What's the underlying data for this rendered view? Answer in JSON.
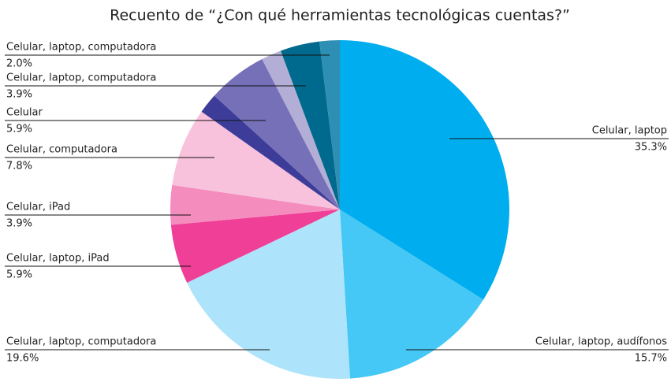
{
  "chart_data": {
    "type": "pie",
    "title": "Recuento de “¿Con qué herramientas tecnológicas cuentas?”",
    "categories": [
      "Celular, laptop",
      "Celular, laptop, audífonos",
      "Celular, laptop, computadora",
      "Celular, laptop, iPad",
      "Celular, iPad",
      "Celular, computadora",
      null,
      "Celular",
      null,
      "Celular, laptop, computadora",
      "Celular, laptop, computadora"
    ],
    "values": [
      35.3,
      15.7,
      19.6,
      5.9,
      3.9,
      7.8,
      2.0,
      5.9,
      2.0,
      3.9,
      2.0
    ],
    "value_labels": [
      "35.3%",
      "15.7%",
      "19.6%",
      "5.9%",
      "3.9%",
      "7.8%",
      null,
      "5.9%",
      null,
      "3.9%",
      "2.0%"
    ],
    "colors": [
      "#00aeef",
      "#45c8f5",
      "#aee4fb",
      "#ef3f97",
      "#f48cbd",
      "#f8c2dc",
      "#3d3d99",
      "#7570b8",
      "#b3aed6",
      "#006a8e",
      "#2e8fb5"
    ]
  }
}
